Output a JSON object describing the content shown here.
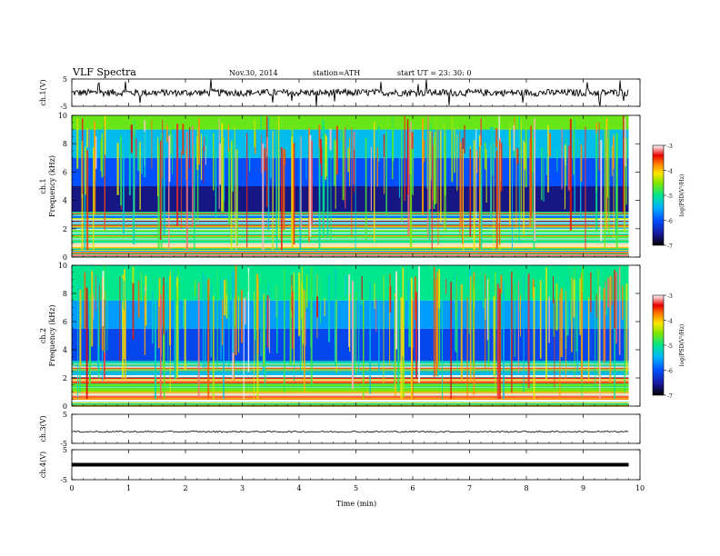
{
  "header": {
    "title": "VLF  Spectra",
    "date": "Nov.30, 2014",
    "station": "station=ATH",
    "start": "start  UT  =   23: 30: 0"
  },
  "chart_data": [
    {
      "type": "line",
      "ylabel": "ch.1(V)",
      "ylim": [
        -5,
        5
      ],
      "yticks": [
        "5",
        "-5"
      ],
      "xlim": [
        0,
        10
      ],
      "trace": "noisy waveform near 0 V with sparse spikes",
      "xticks": [
        0,
        1,
        2,
        3,
        4,
        5,
        6,
        7,
        8,
        9,
        10
      ]
    },
    {
      "type": "heatmap",
      "panel_label": "ch.1",
      "ylabel": "Frequency  (kHz)",
      "ylim": [
        0,
        10
      ],
      "yticks": [
        "0",
        "2",
        "4",
        "6",
        "8",
        "10"
      ],
      "xlim": [
        0,
        10
      ],
      "data_end_min": 9.8,
      "colorbar": {
        "label": "log(PSD(V²/Hz)",
        "min": -7,
        "max": -3,
        "ticks": [
          "-3",
          "-4",
          "-5",
          "-6",
          "-7"
        ]
      },
      "bands": [
        {
          "from": 0.0,
          "to": 0.25,
          "level": -3.2
        },
        {
          "from": 0.25,
          "to": 0.55,
          "level": -6.2
        },
        {
          "from": 0.55,
          "to": 1.0,
          "level": -4.0
        },
        {
          "from": 1.0,
          "to": 2.0,
          "level": -5.0
        },
        {
          "from": 2.0,
          "to": 3.0,
          "level": -5.8
        },
        {
          "from": 3.0,
          "to": 5.0,
          "level": -6.6
        },
        {
          "from": 5.0,
          "to": 7.0,
          "level": -6.0
        },
        {
          "from": 7.0,
          "to": 9.0,
          "level": -5.4
        },
        {
          "from": 9.0,
          "to": 10.0,
          "level": -4.6
        }
      ],
      "xticks": [
        0,
        1,
        2,
        3,
        4,
        5,
        6,
        7,
        8,
        9,
        10
      ]
    },
    {
      "type": "heatmap",
      "panel_label": "ch.2",
      "ylabel": "Frequency  (kHz)",
      "ylim": [
        0,
        10
      ],
      "yticks": [
        "0",
        "2",
        "4",
        "6",
        "8",
        "10"
      ],
      "xlim": [
        0,
        10
      ],
      "data_end_min": 9.8,
      "colorbar": {
        "label": "log(PSD(V²/Hz)",
        "min": -7,
        "max": -3,
        "ticks": [
          "-3",
          "-4",
          "-5",
          "-6",
          "-7"
        ]
      },
      "bands": [
        {
          "from": 0.0,
          "to": 0.3,
          "level": -5.2
        },
        {
          "from": 0.3,
          "to": 1.0,
          "level": -3.8
        },
        {
          "from": 1.0,
          "to": 2.0,
          "level": -4.6
        },
        {
          "from": 2.0,
          "to": 3.2,
          "level": -5.4
        },
        {
          "from": 3.2,
          "to": 5.5,
          "level": -6.1
        },
        {
          "from": 5.5,
          "to": 7.5,
          "level": -5.6
        },
        {
          "from": 7.5,
          "to": 10.0,
          "level": -5.0
        }
      ],
      "xticks": [
        0,
        1,
        2,
        3,
        4,
        5,
        6,
        7,
        8,
        9,
        10
      ]
    },
    {
      "type": "line",
      "ylabel": "ch.3(V)",
      "ylim": [
        -5,
        5
      ],
      "yticks": [
        "5",
        "-5"
      ],
      "xlim": [
        0,
        10
      ],
      "trace": "flat low-amplitude waveform near 0 V",
      "xticks": [
        0,
        1,
        2,
        3,
        4,
        5,
        6,
        7,
        8,
        9,
        10
      ]
    },
    {
      "type": "line",
      "ylabel": "ch.4(V)",
      "ylim": [
        -5,
        5
      ],
      "yticks": [
        "5",
        "-5"
      ],
      "xlim": [
        0,
        10
      ],
      "xlabel": "Time  (min)",
      "trace": "constant thick line near 0 V",
      "xticks": [
        0,
        1,
        2,
        3,
        4,
        5,
        6,
        7,
        8,
        9,
        10
      ],
      "xticklabels": [
        "0",
        "1",
        "2",
        "3",
        "4",
        "5",
        "6",
        "7",
        "8",
        "9",
        "10"
      ]
    }
  ]
}
